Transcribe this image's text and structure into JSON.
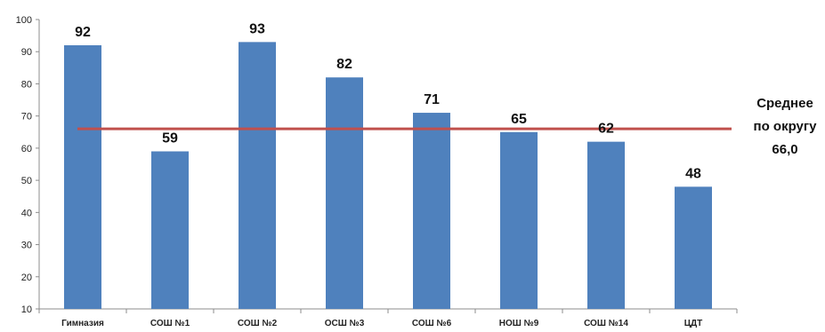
{
  "chart_data": {
    "type": "bar",
    "categories": [
      "Гимназия",
      "СОШ №1",
      "СОШ №2",
      "ОСШ №3",
      "СОШ №6",
      "НОШ №9",
      "СОШ №14",
      "ЦДТ"
    ],
    "values": [
      92,
      59,
      93,
      82,
      71,
      65,
      62,
      48
    ],
    "ylim": [
      10,
      100
    ],
    "yticks": [
      10,
      20,
      30,
      40,
      50,
      60,
      70,
      80,
      90,
      100
    ],
    "title": "",
    "xlabel": "",
    "ylabel": "",
    "grid": false,
    "legend": "none",
    "bar_color": "#4f81bd",
    "average_line": {
      "value": 66.0,
      "color": "#c0504d",
      "label_lines": [
        "Среднее",
        "по округу",
        "66,0"
      ]
    }
  }
}
